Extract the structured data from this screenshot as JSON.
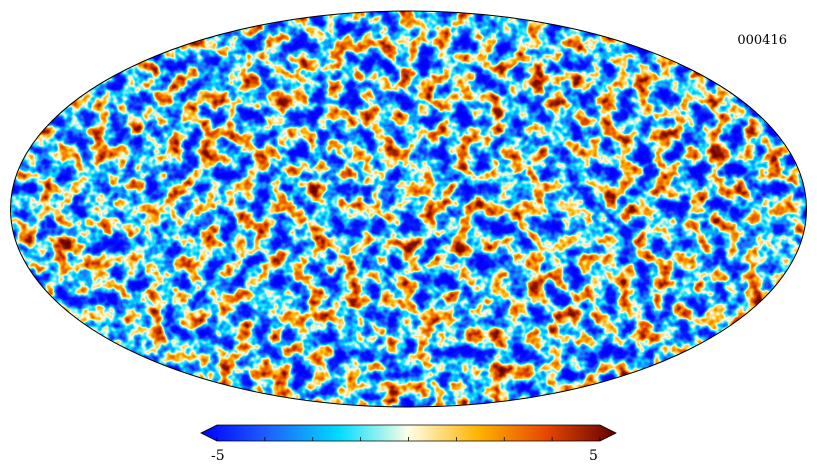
{
  "map": {
    "label": "000416",
    "projection": "mollweide",
    "background": "#ffffff",
    "outline_color": "#000000"
  },
  "colorbar": {
    "min_label": "-5",
    "max_label": "5",
    "min": -5,
    "max": 5,
    "colormap": [
      "#0000ff",
      "#1e64ff",
      "#00dcff",
      "#ffffe6",
      "#ffb400",
      "#e64600",
      "#640000"
    ],
    "ticks": [
      -5,
      -3.75,
      -2.5,
      -1.25,
      0,
      1.25,
      2.5,
      3.75,
      5
    ]
  }
}
